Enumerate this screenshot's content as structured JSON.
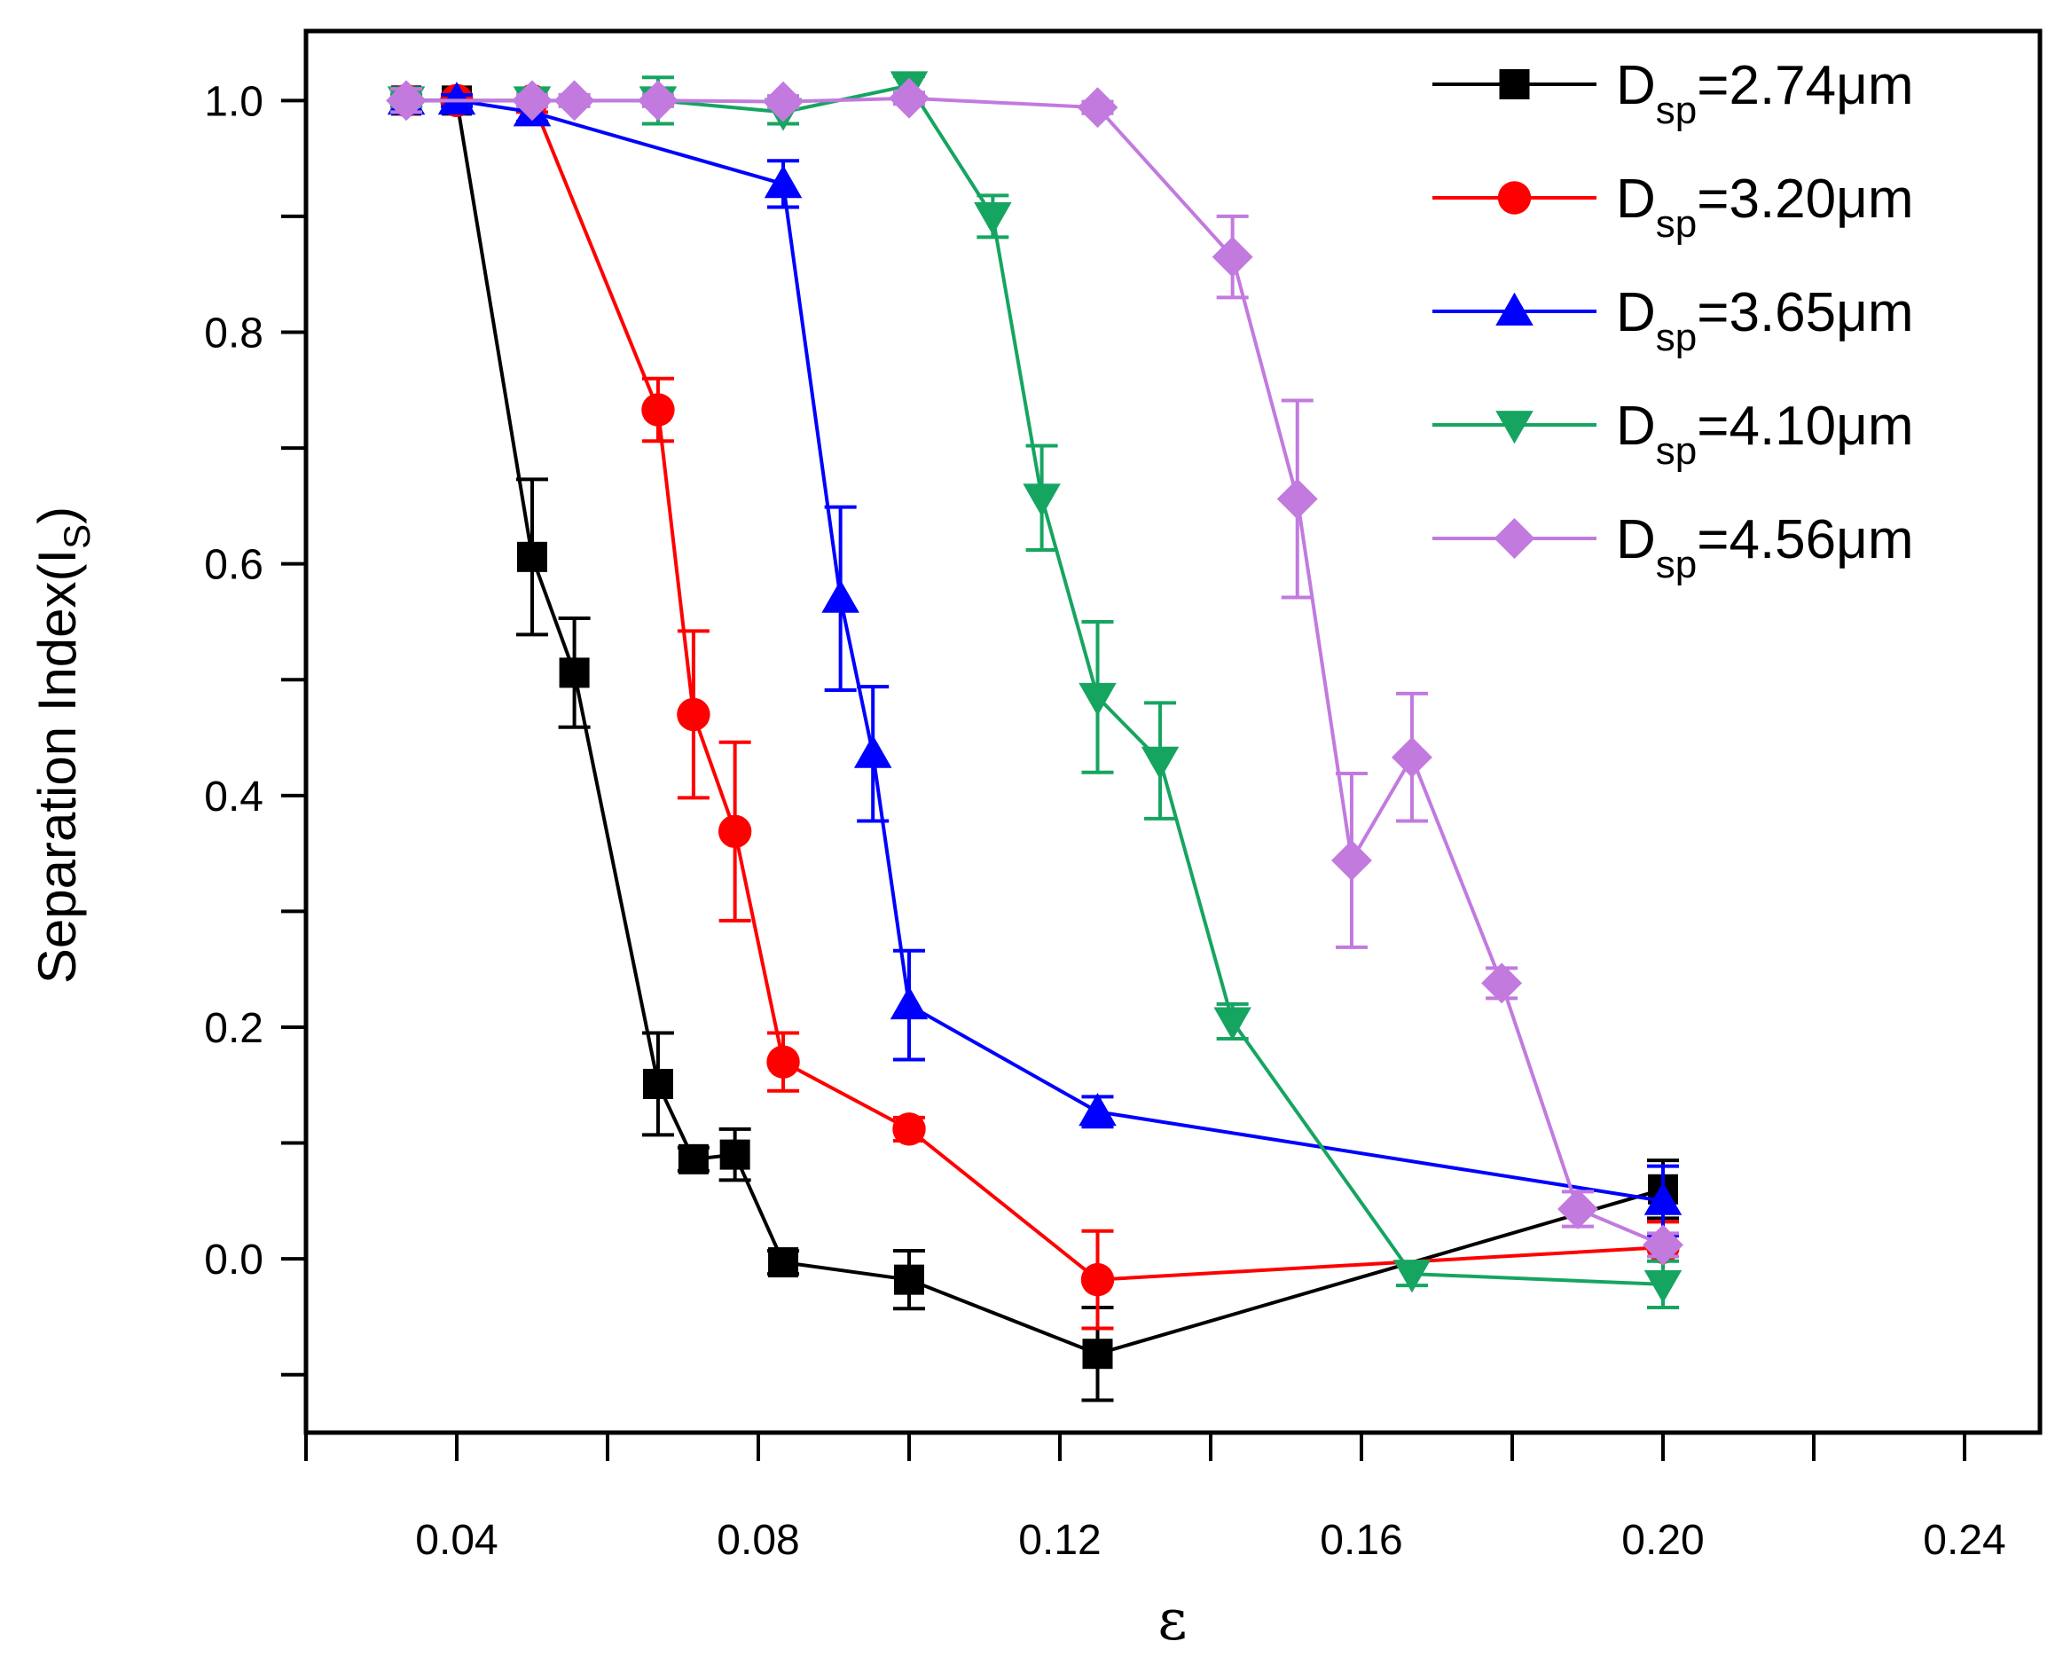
{
  "chart_data": {
    "type": "line",
    "title": "",
    "xlabel": "ε",
    "ylabel": "Separation Index(I",
    "ylabel_sub": "S",
    "ylabel_close": ")",
    "xlim": [
      0.02,
      0.25
    ],
    "ylim": [
      -0.15,
      1.06
    ],
    "x_ticks": [
      0.04,
      0.08,
      0.12,
      0.16,
      0.2,
      0.24
    ],
    "x_tick_labels": [
      "0.04",
      "0.08",
      "0.12",
      "0.16",
      "0.20",
      "0.24"
    ],
    "x_minor_ticks": [
      0.02,
      0.06,
      0.1,
      0.14,
      0.18,
      0.22
    ],
    "y_ticks": [
      0.0,
      0.2,
      0.4,
      0.6,
      0.8,
      1.0
    ],
    "y_tick_labels": [
      "0.0",
      "0.2",
      "0.4",
      "0.6",
      "0.8",
      "1.0"
    ],
    "y_minor_ticks": [
      -0.1,
      0.1,
      0.3,
      0.5,
      0.7,
      0.9
    ],
    "grid": false,
    "legend_position": "top-right",
    "series": [
      {
        "name": "D=2.74μm",
        "label_main": "D",
        "label_sub": "sp",
        "label_rest": "=2.74μm",
        "color": "#000000",
        "marker": "square",
        "points": [
          [
            0.0333,
            1.0,
            0.01
          ],
          [
            0.04,
            1.0,
            0.005
          ],
          [
            0.05,
            0.606,
            0.067
          ],
          [
            0.0556,
            0.506,
            0.047
          ],
          [
            0.0667,
            0.151,
            0.044
          ],
          [
            0.0714,
            0.086,
            0.01
          ],
          [
            0.0769,
            0.09,
            0.022
          ],
          [
            0.0833,
            -0.003,
            0.01
          ],
          [
            0.1,
            -0.018,
            0.025
          ],
          [
            0.125,
            -0.082,
            0.04
          ],
          [
            0.2,
            0.06,
            0.025
          ]
        ]
      },
      {
        "name": "D=3.20μm",
        "label_main": "D",
        "label_sub": "sp",
        "label_rest": "=3.20μm",
        "color": "#ff0000",
        "marker": "circle",
        "points": [
          [
            0.0333,
            1.0,
            0.005
          ],
          [
            0.04,
            1.0,
            0.005
          ],
          [
            0.05,
            1.0,
            0.01
          ],
          [
            0.0667,
            0.733,
            0.027
          ],
          [
            0.0714,
            0.47,
            0.072
          ],
          [
            0.0769,
            0.369,
            0.077
          ],
          [
            0.0833,
            0.17,
            0.025
          ],
          [
            0.1,
            0.112,
            0.01
          ],
          [
            0.125,
            -0.018,
            0.042
          ],
          [
            0.2,
            0.01,
            0.022
          ]
        ]
      },
      {
        "name": "D=3.65μm",
        "label_main": "D",
        "label_sub": "sp",
        "label_rest": "=3.65μm",
        "color": "#0000ff",
        "marker": "triangle-up",
        "points": [
          [
            0.0333,
            1.0,
            0.005
          ],
          [
            0.04,
            1.0,
            0.005
          ],
          [
            0.05,
            0.99,
            0.008
          ],
          [
            0.0833,
            0.928,
            0.02
          ],
          [
            0.0909,
            0.57,
            0.079
          ],
          [
            0.0952,
            0.436,
            0.058
          ],
          [
            0.1,
            0.219,
            0.047
          ],
          [
            0.125,
            0.127,
            0.013
          ],
          [
            0.2,
            0.05,
            0.03
          ]
        ]
      },
      {
        "name": "D=4.10μm",
        "label_main": "D",
        "label_sub": "sp",
        "label_rest": "=4.10μm",
        "color": "#16a561",
        "marker": "triangle-down",
        "points": [
          [
            0.0333,
            1.0,
            0.005
          ],
          [
            0.05,
            1.0,
            0.005
          ],
          [
            0.0667,
            1.0,
            0.02
          ],
          [
            0.0833,
            0.99,
            0.01
          ],
          [
            0.1,
            1.013,
            0.008
          ],
          [
            0.1111,
            0.9,
            0.018
          ],
          [
            0.1176,
            0.657,
            0.045
          ],
          [
            0.125,
            0.485,
            0.065
          ],
          [
            0.1333,
            0.43,
            0.05
          ],
          [
            0.1429,
            0.205,
            0.015
          ],
          [
            0.1667,
            -0.013,
            0.01
          ],
          [
            0.2,
            -0.022,
            0.02
          ]
        ]
      },
      {
        "name": "D=4.56μm",
        "label_main": "D",
        "label_sub": "sp",
        "label_rest": "=4.56μm",
        "color": "#c27adf",
        "marker": "diamond",
        "points": [
          [
            0.0333,
            1.0,
            0.01
          ],
          [
            0.05,
            1.0,
            0.005
          ],
          [
            0.0556,
            1.0,
            0.005
          ],
          [
            0.0667,
            1.0,
            0.005
          ],
          [
            0.0833,
            0.999,
            0.005
          ],
          [
            0.1,
            1.002,
            0.005
          ],
          [
            0.125,
            0.994,
            0.005
          ],
          [
            0.1429,
            0.865,
            0.035
          ],
          [
            0.1515,
            0.656,
            0.085
          ],
          [
            0.1587,
            0.344,
            0.075
          ],
          [
            0.1667,
            0.433,
            0.055
          ],
          [
            0.1786,
            0.238,
            0.013
          ],
          [
            0.1887,
            0.043,
            0.015
          ],
          [
            0.2,
            0.012,
            0.01
          ]
        ]
      }
    ]
  }
}
